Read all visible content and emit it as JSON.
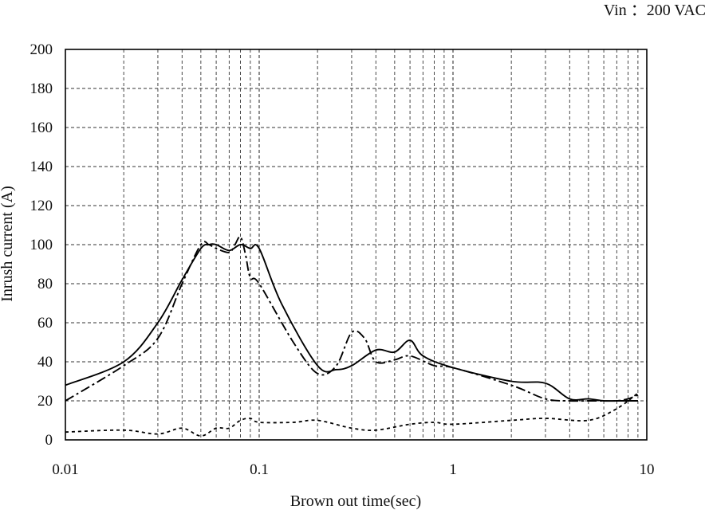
{
  "chart_data": {
    "type": "line",
    "annotation": "Vin ：200 VAC",
    "xlabel": "Brown out time(sec)",
    "ylabel": "Inrush current (A)",
    "x_scale": "log",
    "xlim": [
      0.01,
      10
    ],
    "ylim": [
      0,
      200
    ],
    "x_ticks": [
      {
        "value": 0.01,
        "label": "0.01"
      },
      {
        "value": 0.1,
        "label": "0.1"
      },
      {
        "value": 1,
        "label": "1"
      },
      {
        "value": 10,
        "label": "10"
      }
    ],
    "y_ticks": [
      {
        "value": 0,
        "label": "0"
      },
      {
        "value": 20,
        "label": "20"
      },
      {
        "value": 40,
        "label": "40"
      },
      {
        "value": 60,
        "label": "60"
      },
      {
        "value": 80,
        "label": "80"
      },
      {
        "value": 100,
        "label": "100"
      },
      {
        "value": 120,
        "label": "120"
      },
      {
        "value": 140,
        "label": "140"
      },
      {
        "value": 160,
        "label": "160"
      },
      {
        "value": 180,
        "label": "180"
      },
      {
        "value": 200,
        "label": "200"
      }
    ],
    "grid": true,
    "series": [
      {
        "style": "solid",
        "color": "#000000",
        "x": [
          0.01,
          0.02,
          0.03,
          0.04,
          0.05,
          0.055,
          0.06,
          0.07,
          0.08,
          0.09,
          0.1,
          0.13,
          0.2,
          0.25,
          0.3,
          0.4,
          0.5,
          0.6,
          0.7,
          1,
          2,
          3,
          4,
          5,
          6,
          7,
          8,
          9
        ],
        "y": [
          28,
          40,
          60,
          82,
          98,
          100,
          100,
          97,
          100,
          98,
          98,
          70,
          38,
          36,
          38,
          46,
          45,
          51,
          43,
          37,
          30,
          29,
          21,
          21,
          20,
          20,
          20,
          20
        ]
      },
      {
        "style": "dashdot",
        "color": "#000000",
        "x": [
          0.01,
          0.02,
          0.03,
          0.04,
          0.05,
          0.055,
          0.06,
          0.07,
          0.075,
          0.08,
          0.085,
          0.09,
          0.1,
          0.15,
          0.2,
          0.25,
          0.3,
          0.35,
          0.4,
          0.5,
          0.6,
          0.8,
          1,
          2,
          3,
          4,
          5,
          6,
          7,
          8,
          9
        ],
        "y": [
          20,
          38,
          52,
          80,
          100,
          100,
          98,
          96,
          100,
          104,
          95,
          83,
          80,
          50,
          34,
          38,
          55,
          52,
          40,
          41,
          43,
          38,
          37,
          28,
          21,
          20,
          20,
          20,
          20,
          21,
          23
        ]
      },
      {
        "style": "dotted",
        "color": "#000000",
        "x": [
          0.01,
          0.02,
          0.03,
          0.04,
          0.05,
          0.06,
          0.07,
          0.08,
          0.09,
          0.1,
          0.15,
          0.2,
          0.3,
          0.4,
          0.6,
          0.8,
          1,
          2,
          3,
          5,
          7,
          9
        ],
        "y": [
          4,
          5,
          3,
          6,
          2,
          6,
          6,
          10,
          11,
          9,
          9,
          10,
          6,
          5,
          8,
          9,
          8,
          10,
          11,
          10,
          16,
          24
        ]
      }
    ]
  }
}
